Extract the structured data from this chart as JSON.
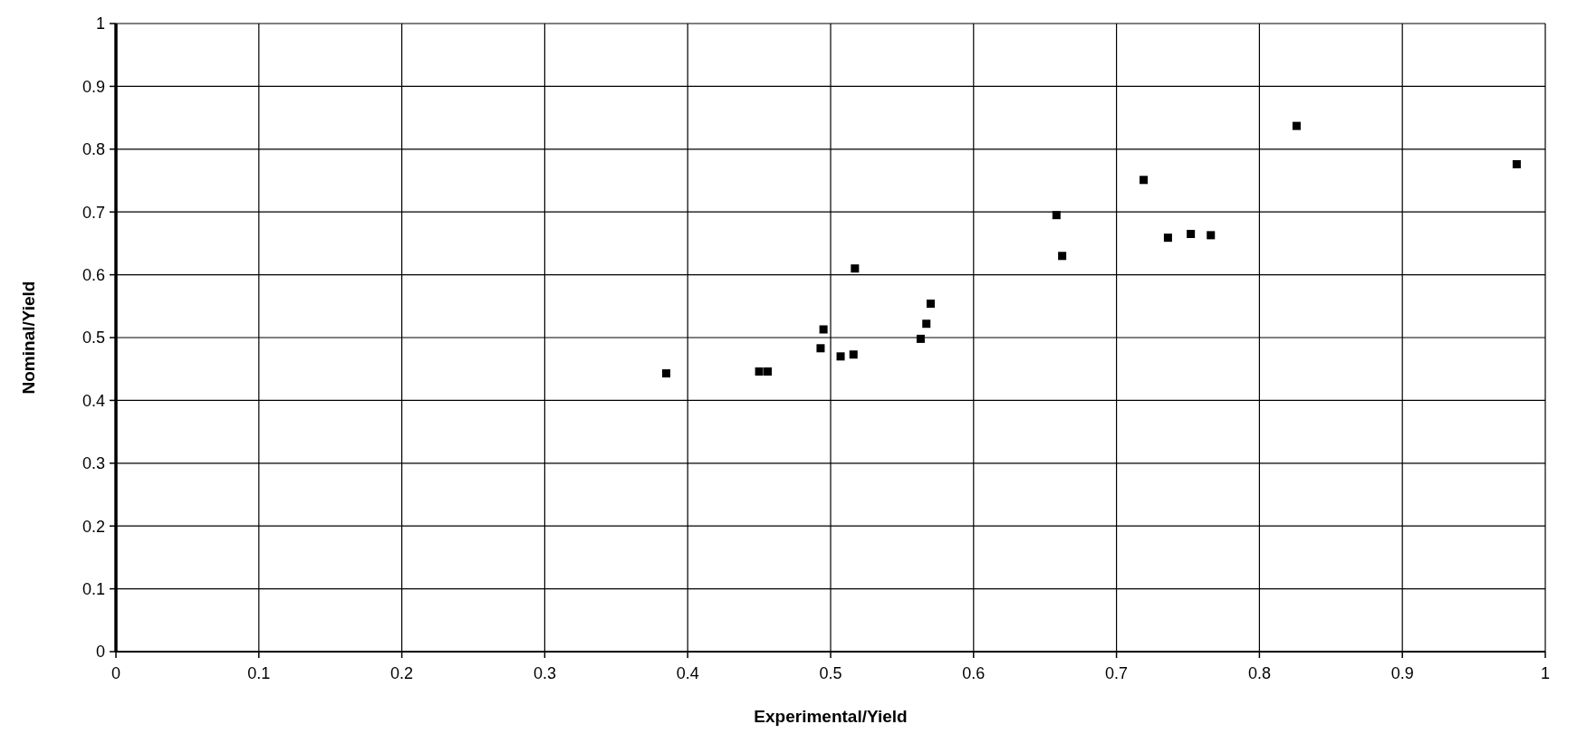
{
  "chart_data": {
    "type": "scatter",
    "xlabel": "Experimental/Yield",
    "ylabel": "Nominal/Yield",
    "x": [
      0.385,
      0.45,
      0.456,
      0.493,
      0.495,
      0.507,
      0.516,
      0.517,
      0.563,
      0.567,
      0.57,
      0.658,
      0.662,
      0.719,
      0.736,
      0.752,
      0.766,
      0.826,
      0.98
    ],
    "series": [
      {
        "color": "#000000",
        "values": [
          0.443,
          0.446,
          0.446,
          0.483,
          0.513,
          0.47,
          0.473,
          0.61,
          0.498,
          0.522,
          0.554,
          0.695,
          0.63,
          0.751,
          0.659,
          0.665,
          0.663,
          0.837,
          0.776
        ]
      }
    ],
    "xlim": [
      0,
      1
    ],
    "ylim": [
      0,
      1
    ],
    "xticks": [
      0,
      0.1,
      0.2,
      0.3,
      0.4,
      0.5,
      0.6,
      0.7,
      0.8,
      0.9,
      1
    ],
    "yticks": [
      0,
      0.1,
      0.2,
      0.3,
      0.4,
      0.5,
      0.6,
      0.7,
      0.8,
      0.9,
      1
    ],
    "grid": true,
    "marker": "square"
  }
}
